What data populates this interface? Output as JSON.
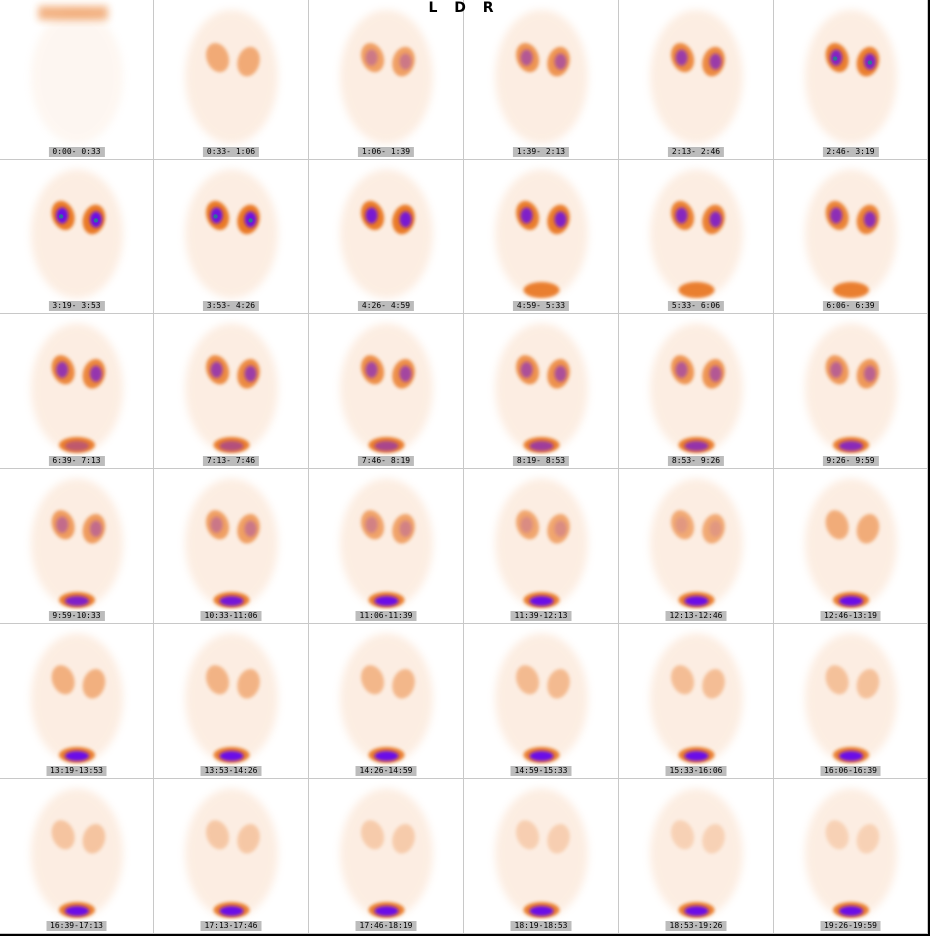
{
  "header": {
    "label": "L D R"
  },
  "colors": {
    "background": "#ffffff",
    "cell_border": "#c8c8c8",
    "label_bg": "#bcbcbc",
    "colormap_low": "#f7c9a6",
    "colormap_mid": "#e8731a",
    "colormap_high": "#6a10e8",
    "colormap_peak": "#1a8a8a"
  },
  "frames": [
    {
      "label": "0:00- 0:33"
    },
    {
      "label": "0:33- 1:06"
    },
    {
      "label": "1:06- 1:39"
    },
    {
      "label": "1:39- 2:13"
    },
    {
      "label": "2:13- 2:46"
    },
    {
      "label": "2:46- 3:19"
    },
    {
      "label": "3:19- 3:53"
    },
    {
      "label": "3:53- 4:26"
    },
    {
      "label": "4:26- 4:59"
    },
    {
      "label": "4:59- 5:33"
    },
    {
      "label": "5:33- 6:06"
    },
    {
      "label": "6:06- 6:39"
    },
    {
      "label": "6:39- 7:13"
    },
    {
      "label": "7:13- 7:46"
    },
    {
      "label": "7:46- 8:19"
    },
    {
      "label": "8:19- 8:53"
    },
    {
      "label": "8:53- 9:26"
    },
    {
      "label": "9:26- 9:59"
    },
    {
      "label": "9:59-10:33"
    },
    {
      "label": "10:33-11:06"
    },
    {
      "label": "11:06-11:39"
    },
    {
      "label": "11:39-12:13"
    },
    {
      "label": "12:13-12:46"
    },
    {
      "label": "12:46-13:19"
    },
    {
      "label": "13:19-13:53"
    },
    {
      "label": "13:53-14:26"
    },
    {
      "label": "14:26-14:59"
    },
    {
      "label": "14:59-15:33"
    },
    {
      "label": "15:33-16:06"
    },
    {
      "label": "16:06-16:39"
    },
    {
      "label": "16:39-17:13"
    },
    {
      "label": "17:13-17:46"
    },
    {
      "label": "17:46-18:19"
    },
    {
      "label": "18:19-18:53"
    },
    {
      "label": "18:53-19:26"
    },
    {
      "label": "19:26-19:59"
    }
  ]
}
